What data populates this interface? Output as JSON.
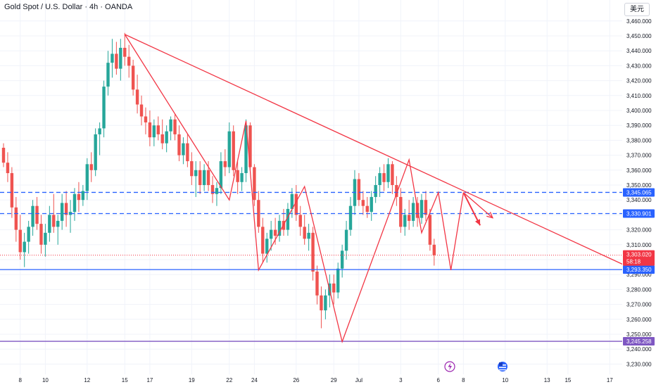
{
  "header": {
    "title": "Gold Spot / U.S. Dollar · 4h · OANDA",
    "currency_button": "美元"
  },
  "colors": {
    "up": "#26a69a",
    "down": "#ef5350",
    "trendline": "#f23645",
    "level_blue": "#2962ff",
    "level_purple": "#7e57c2",
    "current_price_tag": "#f23645",
    "icons": {
      "flash": "#9c27b0",
      "us_flag": "#2962ff"
    }
  },
  "chart_data": {
    "type": "candlestick",
    "instrument": "Gold Spot / U.S. Dollar",
    "timeframe": "4h",
    "source": "OANDA",
    "y_axis": {
      "range": [
        3225,
        3475
      ],
      "ticks": [
        "3,230.000",
        "3,240.000",
        "3,250.000",
        "3,260.000",
        "3,270.000",
        "3,280.000",
        "3,290.000",
        "3,300.000",
        "3,310.000",
        "3,320.000",
        "3,330.000",
        "3,340.000",
        "3,350.000",
        "3,360.000",
        "3,370.000",
        "3,380.000",
        "3,390.000",
        "3,400.000",
        "3,410.000",
        "3,420.000",
        "3,430.000",
        "3,440.000",
        "3,450.000",
        "3,460.000"
      ],
      "tick_values": [
        3230,
        3240,
        3250,
        3260,
        3270,
        3280,
        3290,
        3300,
        3310,
        3320,
        3330,
        3340,
        3350,
        3360,
        3370,
        3380,
        3390,
        3400,
        3410,
        3420,
        3430,
        3440,
        3450,
        3460
      ]
    },
    "x_axis": {
      "range": [
        0,
        148
      ],
      "ticks": [
        {
          "label": "8",
          "i": 4
        },
        {
          "label": "10",
          "i": 10
        },
        {
          "label": "12",
          "i": 20
        },
        {
          "label": "15",
          "i": 29
        },
        {
          "label": "17",
          "i": 35
        },
        {
          "label": "19",
          "i": 45
        },
        {
          "label": "22",
          "i": 54
        },
        {
          "label": "24",
          "i": 60
        },
        {
          "label": "26",
          "i": 70
        },
        {
          "label": "29",
          "i": 79
        },
        {
          "label": "Jul",
          "i": 85
        },
        {
          "label": "3",
          "i": 95
        },
        {
          "label": "6",
          "i": 104
        },
        {
          "label": "8",
          "i": 110
        },
        {
          "label": "10",
          "i": 120
        },
        {
          "label": "13",
          "i": 130
        },
        {
          "label": "15",
          "i": 135
        },
        {
          "label": "17",
          "i": 145
        }
      ]
    },
    "candles": [
      [
        3375,
        3378,
        3362,
        3365
      ],
      [
        3365,
        3372,
        3352,
        3358
      ],
      [
        3358,
        3362,
        3328,
        3335
      ],
      [
        3335,
        3342,
        3312,
        3320
      ],
      [
        3320,
        3330,
        3300,
        3305
      ],
      [
        3305,
        3318,
        3295,
        3312
      ],
      [
        3312,
        3326,
        3304,
        3322
      ],
      [
        3322,
        3340,
        3316,
        3336
      ],
      [
        3336,
        3342,
        3320,
        3324
      ],
      [
        3324,
        3330,
        3304,
        3310
      ],
      [
        3310,
        3324,
        3302,
        3318
      ],
      [
        3318,
        3336,
        3312,
        3330
      ],
      [
        3330,
        3344,
        3318,
        3322
      ],
      [
        3322,
        3330,
        3310,
        3326
      ],
      [
        3326,
        3344,
        3320,
        3338
      ],
      [
        3338,
        3346,
        3322,
        3330
      ],
      [
        3330,
        3340,
        3318,
        3332
      ],
      [
        3332,
        3348,
        3326,
        3344
      ],
      [
        3344,
        3352,
        3332,
        3340
      ],
      [
        3340,
        3350,
        3336,
        3346
      ],
      [
        3346,
        3368,
        3340,
        3364
      ],
      [
        3364,
        3372,
        3352,
        3360
      ],
      [
        3360,
        3388,
        3356,
        3384
      ],
      [
        3384,
        3392,
        3370,
        3388
      ],
      [
        3388,
        3420,
        3382,
        3416
      ],
      [
        3416,
        3440,
        3410,
        3432
      ],
      [
        3432,
        3448,
        3422,
        3438
      ],
      [
        3438,
        3446,
        3424,
        3428
      ],
      [
        3428,
        3448,
        3420,
        3442
      ],
      [
        3442,
        3452,
        3430,
        3436
      ],
      [
        3436,
        3444,
        3422,
        3430
      ],
      [
        3430,
        3434,
        3410,
        3414
      ],
      [
        3414,
        3424,
        3398,
        3404
      ],
      [
        3404,
        3410,
        3390,
        3396
      ],
      [
        3396,
        3402,
        3384,
        3392
      ],
      [
        3392,
        3400,
        3376,
        3382
      ],
      [
        3382,
        3394,
        3376,
        3390
      ],
      [
        3390,
        3396,
        3380,
        3384
      ],
      [
        3384,
        3394,
        3374,
        3378
      ],
      [
        3378,
        3390,
        3372,
        3386
      ],
      [
        3386,
        3396,
        3380,
        3394
      ],
      [
        3394,
        3398,
        3380,
        3384
      ],
      [
        3384,
        3390,
        3366,
        3370
      ],
      [
        3370,
        3382,
        3364,
        3378
      ],
      [
        3378,
        3384,
        3362,
        3366
      ],
      [
        3366,
        3372,
        3350,
        3356
      ],
      [
        3356,
        3366,
        3342,
        3360
      ],
      [
        3360,
        3366,
        3344,
        3350
      ],
      [
        3350,
        3364,
        3346,
        3360
      ],
      [
        3360,
        3366,
        3346,
        3350
      ],
      [
        3350,
        3356,
        3338,
        3344
      ],
      [
        3344,
        3352,
        3336,
        3348
      ],
      [
        3348,
        3372,
        3344,
        3366
      ],
      [
        3366,
        3374,
        3356,
        3362
      ],
      [
        3362,
        3392,
        3358,
        3386
      ],
      [
        3386,
        3390,
        3356,
        3360
      ],
      [
        3360,
        3366,
        3344,
        3352
      ],
      [
        3352,
        3362,
        3346,
        3358
      ],
      [
        3358,
        3394,
        3352,
        3390
      ],
      [
        3390,
        3392,
        3360,
        3362
      ],
      [
        3362,
        3364,
        3336,
        3340
      ],
      [
        3340,
        3346,
        3318,
        3322
      ],
      [
        3322,
        3328,
        3298,
        3304
      ],
      [
        3304,
        3318,
        3298,
        3314
      ],
      [
        3314,
        3326,
        3306,
        3320
      ],
      [
        3320,
        3328,
        3310,
        3316
      ],
      [
        3316,
        3330,
        3312,
        3326
      ],
      [
        3326,
        3334,
        3316,
        3320
      ],
      [
        3320,
        3338,
        3316,
        3334
      ],
      [
        3334,
        3348,
        3328,
        3344
      ],
      [
        3344,
        3350,
        3326,
        3330
      ],
      [
        3330,
        3336,
        3316,
        3322
      ],
      [
        3322,
        3330,
        3310,
        3314
      ],
      [
        3314,
        3324,
        3306,
        3318
      ],
      [
        3318,
        3322,
        3286,
        3292
      ],
      [
        3292,
        3296,
        3270,
        3276
      ],
      [
        3276,
        3282,
        3254,
        3266
      ],
      [
        3266,
        3280,
        3260,
        3276
      ],
      [
        3276,
        3290,
        3268,
        3284
      ],
      [
        3284,
        3290,
        3270,
        3278
      ],
      [
        3278,
        3298,
        3274,
        3294
      ],
      [
        3294,
        3310,
        3288,
        3306
      ],
      [
        3306,
        3326,
        3300,
        3320
      ],
      [
        3320,
        3342,
        3316,
        3336
      ],
      [
        3336,
        3360,
        3330,
        3354
      ],
      [
        3354,
        3358,
        3336,
        3340
      ],
      [
        3340,
        3346,
        3330,
        3336
      ],
      [
        3336,
        3342,
        3328,
        3332
      ],
      [
        3332,
        3346,
        3326,
        3342
      ],
      [
        3342,
        3356,
        3338,
        3350
      ],
      [
        3350,
        3362,
        3342,
        3358
      ],
      [
        3358,
        3364,
        3346,
        3352
      ],
      [
        3352,
        3368,
        3348,
        3364
      ],
      [
        3364,
        3366,
        3344,
        3350
      ],
      [
        3350,
        3356,
        3336,
        3342
      ],
      [
        3342,
        3348,
        3318,
        3322
      ],
      [
        3322,
        3334,
        3316,
        3330
      ],
      [
        3330,
        3340,
        3320,
        3326
      ],
      [
        3326,
        3342,
        3322,
        3338
      ],
      [
        3338,
        3342,
        3322,
        3328
      ],
      [
        3328,
        3344,
        3324,
        3340
      ],
      [
        3340,
        3346,
        3326,
        3330
      ],
      [
        3330,
        3334,
        3306,
        3310
      ],
      [
        3310,
        3314,
        3296,
        3303
      ]
    ],
    "horizontal_levels": [
      {
        "label": "3,345.065",
        "value": 3345.065,
        "style": "dashed",
        "color": "#2962ff"
      },
      {
        "label": "3,330.901",
        "value": 3330.901,
        "style": "dashed",
        "color": "#2962ff"
      },
      {
        "label": "3,293.350",
        "value": 3293.35,
        "style": "solid",
        "color": "#2962ff"
      },
      {
        "label": "3,245.258",
        "value": 3245.258,
        "style": "solid",
        "color": "#7e57c2"
      }
    ],
    "current_price": {
      "label": "3,303.020",
      "countdown": "58:18",
      "value": 3303.02
    },
    "trendline": {
      "from": [
        29,
        3451
      ],
      "to": [
        148,
        3297
      ]
    },
    "zigzag_pattern": [
      [
        29,
        3451
      ],
      [
        54,
        3340
      ],
      [
        58,
        3393
      ],
      [
        61,
        3293
      ],
      [
        72,
        3349
      ],
      [
        81,
        3245
      ],
      [
        97,
        3367
      ],
      [
        100,
        3318
      ],
      [
        104,
        3345
      ],
      [
        107,
        3293
      ],
      [
        110,
        3345
      ]
    ],
    "projection_arrows": [
      {
        "from": [
          110,
          3345
        ],
        "to": [
          114,
          3323
        ],
        "fill": true
      },
      {
        "from": [
          110,
          3345
        ],
        "to": [
          117,
          3328
        ],
        "fill": false
      }
    ],
    "grid": true,
    "legend": "none"
  }
}
